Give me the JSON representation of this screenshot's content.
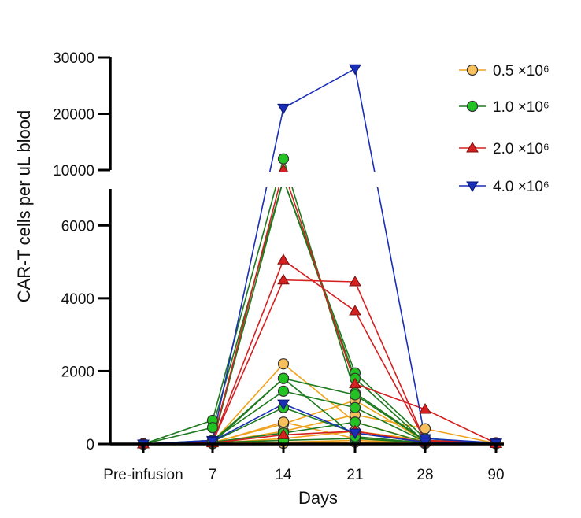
{
  "chart_data": {
    "type": "line",
    "title": "",
    "ylabel": "CAR-T cells per uL blood",
    "xlabel": "Days",
    "categories": [
      "Pre-infusion",
      "7",
      "14",
      "21",
      "28",
      "90"
    ],
    "y_axis": {
      "upper_segment": {
        "range": [
          10000,
          30000
        ],
        "ticks": [
          "10000",
          "20000",
          "30000"
        ]
      },
      "lower_segment": {
        "range": [
          0,
          7000
        ],
        "ticks": [
          "0",
          "2000",
          "4000",
          "6000"
        ]
      },
      "broken": true
    },
    "legend": {
      "placement": "top-right",
      "entries": [
        {
          "label": "0.5 ×10⁶",
          "color": "#F0A21C",
          "marker": "circle",
          "fill": "#F8C05C"
        },
        {
          "label": "1.0 ×10⁶",
          "color": "#1E7A1E",
          "marker": "circle",
          "fill": "#22C322"
        },
        {
          "label": "2.0 ×10⁶",
          "color": "#D42020",
          "marker": "triangle-up",
          "fill": "#D42020"
        },
        {
          "label": "4.0 ×10⁶",
          "color": "#1A2FB8",
          "marker": "triangle-down",
          "fill": "#1A2FB8"
        }
      ]
    },
    "series": [
      {
        "dose": 0.5,
        "values": [
          0,
          50,
          2200,
          600,
          50,
          30
        ]
      },
      {
        "dose": 0.5,
        "values": [
          0,
          40,
          550,
          1200,
          80,
          30
        ]
      },
      {
        "dose": 0.5,
        "values": [
          0,
          30,
          350,
          800,
          420,
          20
        ]
      },
      {
        "dose": 0.5,
        "values": [
          0,
          20,
          150,
          350,
          100,
          20
        ]
      },
      {
        "dose": 0.5,
        "values": [
          0,
          10,
          50,
          100,
          30,
          10
        ]
      },
      {
        "dose": 0.5,
        "values": [
          0,
          10,
          20,
          50,
          10,
          10
        ]
      },
      {
        "dose": 0.5,
        "values": [
          0,
          30,
          600,
          150,
          50,
          30
        ]
      },
      {
        "dose": 1.0,
        "values": [
          0,
          650,
          12000,
          1400,
          100,
          30
        ]
      },
      {
        "dose": 1.0,
        "values": [
          0,
          450,
          8000,
          1950,
          150,
          20
        ]
      },
      {
        "dose": 1.0,
        "values": [
          0,
          80,
          1800,
          1350,
          80,
          20
        ]
      },
      {
        "dose": 1.0,
        "values": [
          0,
          100,
          1450,
          1000,
          60,
          20
        ]
      },
      {
        "dose": 1.0,
        "values": [
          0,
          60,
          1000,
          300,
          50,
          20
        ]
      },
      {
        "dose": 1.0,
        "values": [
          0,
          50,
          300,
          600,
          40,
          10
        ]
      },
      {
        "dose": 1.0,
        "values": [
          0,
          40,
          100,
          150,
          30,
          10
        ]
      },
      {
        "dose": 1.0,
        "values": [
          0,
          30,
          1800,
          200,
          30,
          10
        ]
      },
      {
        "dose": 1.0,
        "values": [
          0,
          20,
          7500,
          1800,
          50,
          20
        ]
      },
      {
        "dose": 2.0,
        "values": [
          0,
          60,
          10000,
          1650,
          950,
          20
        ]
      },
      {
        "dose": 2.0,
        "values": [
          0,
          50,
          5050,
          3650,
          100,
          20
        ]
      },
      {
        "dose": 2.0,
        "values": [
          0,
          40,
          4500,
          4450,
          80,
          20
        ]
      },
      {
        "dose": 2.0,
        "values": [
          0,
          30,
          250,
          350,
          50,
          10
        ]
      },
      {
        "dose": 4.0,
        "values": [
          0,
          100,
          21000,
          28000,
          150,
          30
        ]
      },
      {
        "dose": 4.0,
        "values": [
          0,
          80,
          1100,
          300,
          50,
          20
        ]
      }
    ]
  }
}
